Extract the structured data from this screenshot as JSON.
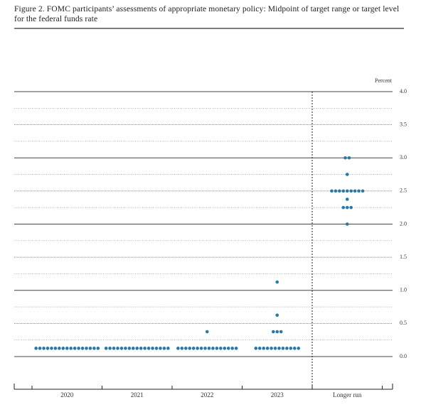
{
  "chart_data": {
    "type": "dot",
    "title": "Figure 2.  FOMC participants’ assessments of appropriate monetary policy: Midpoint of target range or target level for the federal funds rate",
    "y_label": "Percent",
    "categories": [
      "2020",
      "2021",
      "2022",
      "2023",
      "Longer run"
    ],
    "values": [
      [
        0.125,
        0.125,
        0.125,
        0.125,
        0.125,
        0.125,
        0.125,
        0.125,
        0.125,
        0.125,
        0.125,
        0.125,
        0.125,
        0.125,
        0.125,
        0.125,
        0.125
      ],
      [
        0.125,
        0.125,
        0.125,
        0.125,
        0.125,
        0.125,
        0.125,
        0.125,
        0.125,
        0.125,
        0.125,
        0.125,
        0.125,
        0.125,
        0.125,
        0.125,
        0.125
      ],
      [
        0.375,
        0.125,
        0.125,
        0.125,
        0.125,
        0.125,
        0.125,
        0.125,
        0.125,
        0.125,
        0.125,
        0.125,
        0.125,
        0.125,
        0.125,
        0.125,
        0.125
      ],
      [
        1.125,
        0.625,
        0.375,
        0.375,
        0.375,
        0.125,
        0.125,
        0.125,
        0.125,
        0.125,
        0.125,
        0.125,
        0.125,
        0.125,
        0.125,
        0.125,
        0.125
      ],
      [
        3.0,
        3.0,
        2.75,
        2.5,
        2.5,
        2.5,
        2.5,
        2.5,
        2.5,
        2.5,
        2.5,
        2.5,
        2.375,
        2.25,
        2.25,
        2.25,
        2.0
      ]
    ],
    "color": "#2878aa",
    "ylim": [
      -0.5,
      4.0
    ],
    "yticks": [
      {
        "value": 0,
        "label": "0.0"
      },
      {
        "value": 0.5,
        "label": "0.5"
      },
      {
        "value": 1,
        "label": "1.0"
      },
      {
        "value": 1.5,
        "label": "1.5"
      },
      {
        "value": 2,
        "label": "2.0"
      },
      {
        "value": 2.5,
        "label": "2.5"
      },
      {
        "value": 3,
        "label": "3.0"
      },
      {
        "value": 3.5,
        "label": "3.5"
      },
      {
        "value": 4,
        "label": "4.0"
      }
    ],
    "minor_yticks": [
      0.25,
      0.75,
      1.25,
      1.75,
      2.25,
      2.75,
      3.25,
      3.75
    ],
    "grid": true
  }
}
